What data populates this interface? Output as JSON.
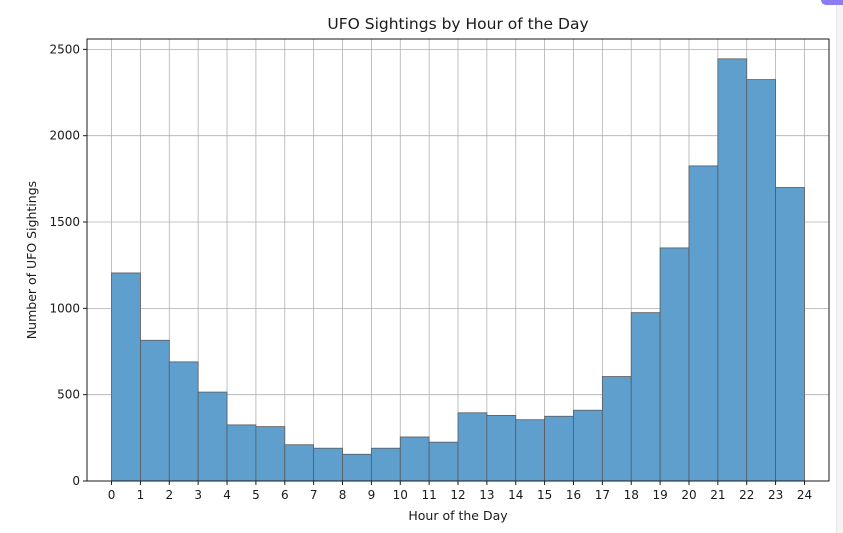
{
  "chart_data": {
    "type": "bar",
    "title": "UFO Sightings by Hour of the Day",
    "xlabel": "Hour of the Day",
    "ylabel": "Number of UFO Sightings",
    "bin_edges": [
      0,
      1,
      2,
      3,
      4,
      5,
      6,
      7,
      8,
      9,
      10,
      11,
      12,
      13,
      14,
      15,
      16,
      17,
      18,
      19,
      20,
      21,
      22,
      23,
      24
    ],
    "values": [
      1205,
      815,
      690,
      515,
      325,
      315,
      210,
      190,
      155,
      190,
      255,
      225,
      395,
      380,
      355,
      375,
      410,
      605,
      975,
      1350,
      1825,
      2445,
      2325,
      1700
    ],
    "x_ticks": [
      "0",
      "1",
      "2",
      "3",
      "4",
      "5",
      "6",
      "7",
      "8",
      "9",
      "10",
      "11",
      "12",
      "13",
      "14",
      "15",
      "16",
      "17",
      "18",
      "19",
      "20",
      "21",
      "22",
      "23",
      "24"
    ],
    "y_ticks": [
      0,
      500,
      1000,
      1500,
      2000,
      2500
    ],
    "xlim": [
      -0.85,
      24.85
    ],
    "ylim": [
      0,
      2560
    ],
    "grid": true,
    "bar_color": "#5f9fce",
    "edge_color": "#5a5a5a"
  }
}
